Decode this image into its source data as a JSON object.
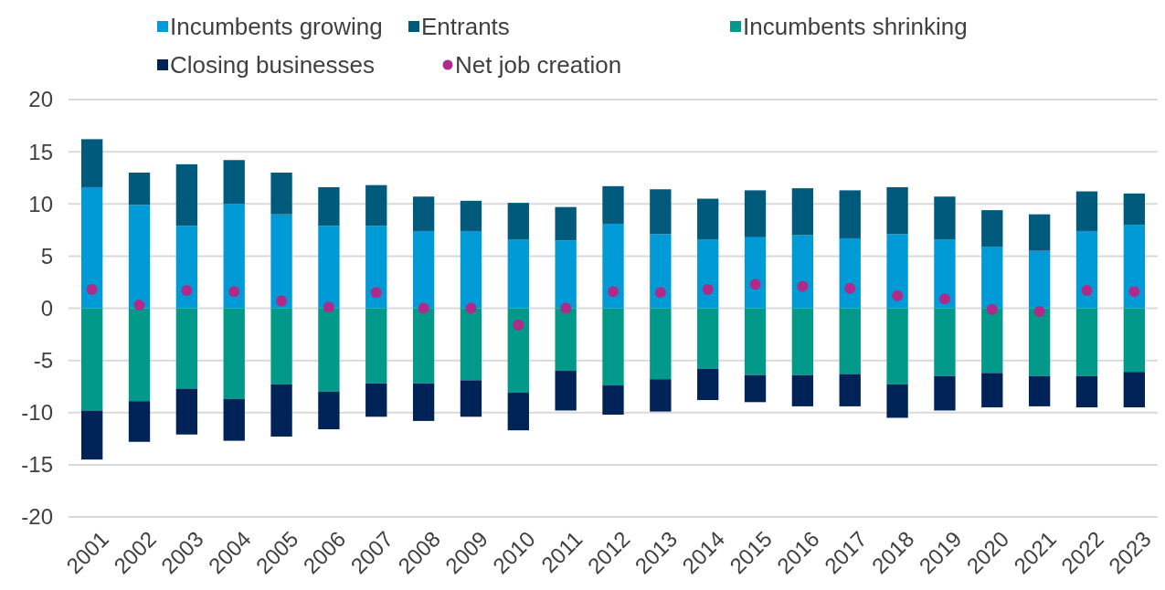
{
  "chart_data": {
    "type": "bar",
    "stacked": true,
    "categories": [
      "2001",
      "2002",
      "2003",
      "2004",
      "2005",
      "2006",
      "2007",
      "2008",
      "2009",
      "2010",
      "2011",
      "2012",
      "2013",
      "2014",
      "2015",
      "2016",
      "2017",
      "2018",
      "2019",
      "2020",
      "2021",
      "2022",
      "2023"
    ],
    "series": [
      {
        "name": "Incumbents growing",
        "color": "#009bd6",
        "values": [
          11.6,
          9.9,
          7.9,
          10.0,
          9.0,
          7.9,
          7.9,
          7.4,
          7.4,
          6.6,
          6.5,
          8.1,
          7.1,
          6.6,
          6.8,
          7.0,
          6.7,
          7.1,
          6.6,
          5.9,
          5.5,
          7.4,
          8.0
        ]
      },
      {
        "name": "Entrants",
        "color": "#005a7c",
        "values": [
          4.6,
          3.1,
          5.9,
          4.2,
          4.0,
          3.7,
          3.9,
          3.3,
          2.9,
          3.5,
          3.2,
          3.6,
          4.3,
          3.9,
          4.5,
          4.5,
          4.6,
          4.5,
          4.1,
          3.5,
          3.5,
          3.8,
          3.0
        ]
      },
      {
        "name": "Incumbents shrinking",
        "color": "#00998a",
        "values": [
          -9.8,
          -8.9,
          -7.7,
          -8.7,
          -7.3,
          -8.0,
          -7.2,
          -7.2,
          -6.9,
          -8.1,
          -6.0,
          -7.4,
          -6.8,
          -5.8,
          -6.4,
          -6.4,
          -6.3,
          -7.3,
          -6.5,
          -6.2,
          -6.5,
          -6.5,
          -6.1
        ]
      },
      {
        "name": "Closing businesses",
        "color": "#002357",
        "values": [
          -4.7,
          -3.9,
          -4.4,
          -4.0,
          -5.0,
          -3.6,
          -3.2,
          -3.6,
          -3.5,
          -3.6,
          -3.8,
          -2.8,
          -3.1,
          -3.0,
          -2.6,
          -3.0,
          -3.1,
          -3.2,
          -3.3,
          -3.3,
          -2.9,
          -3.0,
          -3.4
        ]
      },
      {
        "name": "Net job creation",
        "type": "scatter",
        "color": "#b02a8a",
        "marker": "circle",
        "values": [
          1.8,
          0.3,
          1.7,
          1.6,
          0.7,
          0.1,
          1.5,
          0.0,
          0.0,
          -1.6,
          0.0,
          1.6,
          1.5,
          1.8,
          2.3,
          2.1,
          1.9,
          1.2,
          0.9,
          -0.1,
          -0.3,
          1.7,
          1.6
        ]
      }
    ],
    "ylim": [
      -20,
      20
    ],
    "yticks": [
      -20,
      -15,
      -10,
      -5,
      0,
      5,
      10,
      15,
      20
    ],
    "grid": "y",
    "legend": "top"
  }
}
